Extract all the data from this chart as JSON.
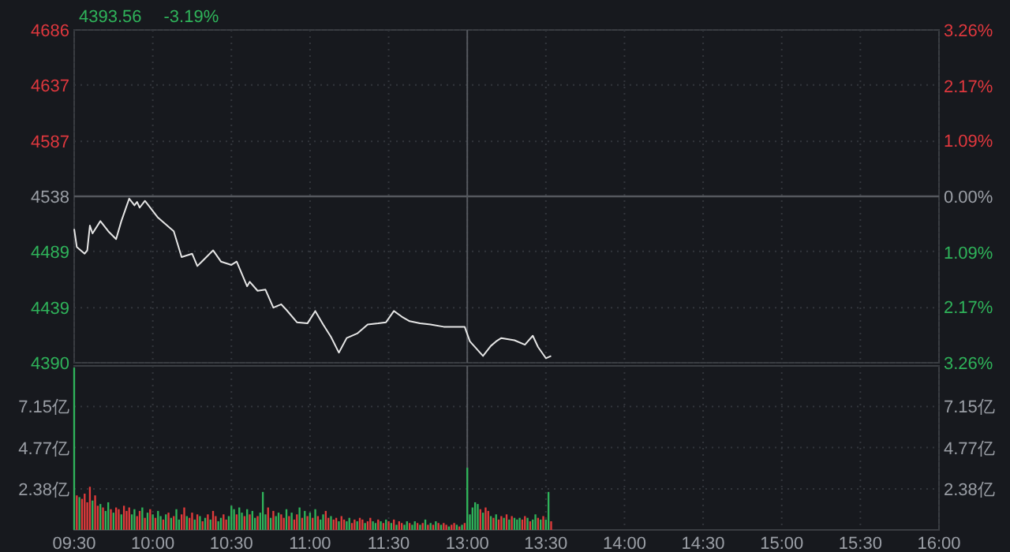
{
  "chart_data": [
    {
      "type": "line",
      "title": "4393.56",
      "subtitle": "-3.19%",
      "categories": [
        "09:30",
        null,
        null,
        null,
        null,
        null,
        null,
        null,
        null,
        null,
        null,
        null,
        null,
        null,
        null,
        null,
        null,
        null,
        null,
        null,
        null,
        null,
        null,
        null,
        null,
        null,
        null,
        null,
        null,
        null,
        "10:00",
        null,
        null,
        null,
        null,
        null,
        null,
        null,
        null,
        null,
        null,
        null,
        null,
        null,
        null,
        null,
        null,
        null,
        null,
        null,
        null,
        null,
        null,
        null,
        null,
        null,
        null,
        null,
        null,
        null,
        "10:30",
        null,
        null,
        null,
        null,
        null,
        null,
        null,
        null,
        null,
        null,
        null,
        null,
        null,
        null,
        null,
        null,
        null,
        null,
        null,
        null,
        null,
        null,
        null,
        null,
        null,
        null,
        null,
        null,
        null,
        "11:00",
        null,
        null,
        null,
        null,
        null,
        null,
        null,
        null,
        null,
        null,
        null,
        null,
        null,
        null,
        null,
        null,
        null,
        null,
        null,
        null,
        null,
        null,
        null,
        null,
        null,
        null,
        null,
        null,
        null,
        "11:30",
        null,
        null,
        null,
        null,
        null,
        null,
        null,
        null,
        null,
        null,
        null,
        null,
        null,
        null,
        null,
        null,
        null,
        null,
        null,
        null,
        null,
        null,
        null,
        null,
        null,
        null,
        null,
        null,
        null,
        "13:00",
        null,
        null,
        null,
        null,
        null,
        null,
        null,
        null,
        null,
        null,
        null,
        null,
        null,
        null,
        null,
        null,
        null,
        null,
        null,
        null,
        null,
        null,
        null,
        null,
        null,
        null,
        null,
        null,
        null,
        "13:30",
        null,
        null,
        null,
        null,
        null,
        null,
        null,
        null,
        null,
        null,
        null,
        null,
        null,
        null,
        null,
        null,
        null,
        null,
        null,
        null,
        null,
        null,
        null,
        null,
        null,
        null,
        null,
        null,
        null,
        "14:00",
        null,
        null,
        null,
        null,
        null,
        null,
        null,
        null,
        null,
        null,
        null,
        null,
        null,
        null,
        null,
        null,
        null,
        null,
        null,
        null,
        null,
        null,
        null,
        null,
        null,
        null,
        null,
        null,
        null,
        "14:30",
        null,
        null,
        null,
        null,
        null,
        null,
        null,
        null,
        null,
        null,
        null,
        null,
        null,
        null,
        null,
        null,
        null,
        null,
        null,
        null,
        null,
        null,
        null,
        null,
        null,
        null,
        null,
        null,
        null,
        "15:00",
        null,
        null,
        null,
        null,
        null,
        null,
        null,
        null,
        null,
        null,
        null,
        null,
        null,
        null,
        null,
        null,
        null,
        null,
        null,
        null,
        null,
        null,
        null,
        null,
        null,
        null,
        null,
        null,
        null,
        "15:30",
        null,
        null,
        null,
        null,
        null,
        null,
        null,
        null,
        null,
        null,
        null,
        null,
        null,
        null,
        null,
        null,
        null,
        null,
        null,
        null,
        null,
        null,
        null,
        null,
        null,
        null,
        null,
        null,
        null,
        "16:00"
      ],
      "ylim": [
        4390,
        4686
      ],
      "yticks": [
        4390,
        4439,
        4489,
        4538,
        4587,
        4637,
        4686
      ],
      "y2lim": [
        -3.26,
        3.26
      ],
      "y2ticks": [
        {
          "value": -3.26,
          "label": "3.26%"
        },
        {
          "value": -2.17,
          "label": "2.17%"
        },
        {
          "value": -1.09,
          "label": "1.09%"
        },
        {
          "value": 0,
          "label": "0.00%"
        },
        {
          "value": 1.09,
          "label": "1.09%"
        },
        {
          "value": 2.17,
          "label": "2.17%"
        },
        {
          "value": 3.26,
          "label": "3.26%"
        }
      ],
      "tick_labels": "y",
      "grid": true,
      "ref_lines": [
        {
          "axis": "y",
          "value": 4538,
          "label": null,
          "color": "#55585e"
        },
        {
          "axis": "x",
          "value": "13:00",
          "label": null,
          "color": "#55585e"
        }
      ],
      "series": [
        {
          "color": "#e6e6e6",
          "values": [
            4509,
            4493,
            null,
            null,
            4487,
            4490,
            4512,
            4505,
            null,
            null,
            4516,
            null,
            null,
            4507,
            null,
            null,
            4500,
            null,
            4516,
            null,
            null,
            4536,
            null,
            4530,
            4533,
            4528,
            null,
            4534,
            null,
            null,
            null,
            null,
            4519,
            null,
            null,
            null,
            4511,
            null,
            4507,
            null,
            null,
            4484,
            null,
            null,
            null,
            4487,
            null,
            4476,
            null,
            null,
            4483,
            null,
            null,
            4490,
            null,
            null,
            4480,
            null,
            null,
            null,
            4477,
            null,
            4480,
            null,
            null,
            null,
            4458,
            4462,
            null,
            null,
            4454,
            null,
            null,
            4455,
            null,
            null,
            4439,
            null,
            null,
            4442,
            null,
            4437,
            null,
            null,
            null,
            4426,
            null,
            null,
            null,
            4425,
            null,
            null,
            4436,
            null,
            null,
            4424,
            null,
            null,
            4413,
            null,
            null,
            4399,
            null,
            null,
            4412,
            null,
            null,
            null,
            4416,
            null,
            null,
            null,
            4424,
            null,
            null,
            null,
            4425,
            null,
            null,
            4426,
            null,
            null,
            4436,
            null,
            null,
            4431,
            null,
            null,
            4427,
            null,
            null,
            null,
            4425,
            null,
            null,
            null,
            4424,
            null,
            null,
            null,
            null,
            4422,
            null,
            null,
            null,
            null,
            4422,
            null,
            null,
            4422,
            null,
            4409,
            null,
            null,
            null,
            null,
            4396,
            null,
            null,
            4405,
            null,
            4409,
            null,
            4412,
            null,
            null,
            null,
            null,
            4410,
            null,
            null,
            null,
            4406,
            null,
            null,
            4414,
            null,
            4404,
            null,
            null,
            4394,
            null,
            4396,
            null,
            null,
            null,
            null,
            null,
            null,
            null,
            null,
            null,
            null,
            null,
            null,
            null,
            null,
            null,
            null,
            null,
            null,
            null,
            null,
            null,
            null,
            null,
            null,
            null,
            null,
            null,
            null,
            null,
            null,
            null,
            null,
            null,
            null,
            null,
            null,
            null,
            null,
            null,
            null,
            null,
            null,
            null,
            null,
            null,
            null,
            null,
            null,
            null,
            null,
            null,
            null,
            null,
            null,
            null,
            null,
            null,
            null,
            null,
            null,
            null,
            null,
            null,
            null,
            null,
            null,
            null,
            null,
            null,
            null,
            null,
            null,
            null,
            null,
            null,
            null,
            null,
            null,
            null,
            null,
            null,
            null,
            null,
            null,
            null,
            null,
            null,
            null,
            null,
            null,
            null,
            null,
            null,
            null,
            null,
            null,
            null,
            null,
            null,
            null,
            null,
            null,
            null,
            null,
            null,
            null,
            null,
            null,
            null,
            null,
            null,
            null,
            null,
            null,
            null,
            null,
            null,
            null,
            null,
            null,
            null,
            null,
            null,
            null,
            null,
            null,
            null,
            null,
            null,
            null,
            null,
            null,
            null,
            null,
            null,
            null,
            null,
            null,
            null,
            null,
            null,
            null,
            null,
            null,
            null,
            null,
            null,
            null
          ]
        }
      ]
    },
    {
      "type": "bar",
      "categories": [
        "09:30",
        null,
        null,
        null,
        null,
        null,
        null,
        null,
        null,
        null,
        null,
        null,
        null,
        null,
        null,
        null,
        null,
        null,
        null,
        null,
        null,
        null,
        null,
        null,
        null,
        null,
        null,
        null,
        null,
        null,
        "10:00",
        null,
        null,
        null,
        null,
        null,
        null,
        null,
        null,
        null,
        null,
        null,
        null,
        null,
        null,
        null,
        null,
        null,
        null,
        null,
        null,
        null,
        null,
        null,
        null,
        null,
        null,
        null,
        null,
        null,
        "10:30",
        null,
        null,
        null,
        null,
        null,
        null,
        null,
        null,
        null,
        null,
        null,
        null,
        null,
        null,
        null,
        null,
        null,
        null,
        null,
        null,
        null,
        null,
        null,
        null,
        null,
        null,
        null,
        null,
        null,
        "11:00",
        null,
        null,
        null,
        null,
        null,
        null,
        null,
        null,
        null,
        null,
        null,
        null,
        null,
        null,
        null,
        null,
        null,
        null,
        null,
        null,
        null,
        null,
        null,
        null,
        null,
        null,
        null,
        null,
        null,
        "11:30",
        null,
        null,
        null,
        null,
        null,
        null,
        null,
        null,
        null,
        null,
        null,
        null,
        null,
        null,
        null,
        null,
        null,
        null,
        null,
        null,
        null,
        null,
        null,
        null,
        null,
        null,
        null,
        null,
        null,
        "13:00",
        null,
        null,
        null,
        null,
        null,
        null,
        null,
        null,
        null,
        null,
        null,
        null,
        null,
        null,
        null,
        null,
        null,
        null,
        null,
        null,
        null,
        null,
        null,
        null,
        null,
        null,
        null,
        null,
        null,
        "13:30",
        null,
        null,
        null,
        null,
        null,
        null,
        null,
        null,
        null,
        null,
        null,
        null,
        null,
        null,
        null,
        null,
        null,
        null,
        null,
        null,
        null,
        null,
        null,
        null,
        null,
        null,
        null,
        null,
        null,
        "14:00",
        null,
        null,
        null,
        null,
        null,
        null,
        null,
        null,
        null,
        null,
        null,
        null,
        null,
        null,
        null,
        null,
        null,
        null,
        null,
        null,
        null,
        null,
        null,
        null,
        null,
        null,
        null,
        null,
        null,
        "14:30",
        null,
        null,
        null,
        null,
        null,
        null,
        null,
        null,
        null,
        null,
        null,
        null,
        null,
        null,
        null,
        null,
        null,
        null,
        null,
        null,
        null,
        null,
        null,
        null,
        null,
        null,
        null,
        null,
        null,
        "15:00",
        null,
        null,
        null,
        null,
        null,
        null,
        null,
        null,
        null,
        null,
        null,
        null,
        null,
        null,
        null,
        null,
        null,
        null,
        null,
        null,
        null,
        null,
        null,
        null,
        null,
        null,
        null,
        null,
        null,
        "15:30",
        null,
        null,
        null,
        null,
        null,
        null,
        null,
        null,
        null,
        null,
        null,
        null,
        null,
        null,
        null,
        null,
        null,
        null,
        null,
        null,
        null,
        null,
        null,
        null,
        null,
        null,
        null,
        null,
        null,
        "16:00"
      ],
      "ylim": [
        0,
        9.5
      ],
      "yticks": [
        {
          "value": 2.38,
          "label": "2.38亿"
        },
        {
          "value": 4.77,
          "label": "4.77亿"
        },
        {
          "value": 7.15,
          "label": "7.15亿"
        }
      ],
      "y2lim": [
        0,
        9.5
      ],
      "y2ticks": [
        {
          "value": 2.38,
          "label": "2.38亿"
        },
        {
          "value": 4.77,
          "label": "4.77亿"
        },
        {
          "value": 7.15,
          "label": "7.15亿"
        }
      ],
      "grid": true,
      "ref_lines": [
        {
          "axis": "x",
          "value": "13:00",
          "label": null,
          "color": "#55585e"
        }
      ],
      "values": [
        9.4,
        2.0,
        1.9,
        1.8,
        2.1,
        1.6,
        2.5,
        1.7,
        2.0,
        1.4,
        1.5,
        1.3,
        1.1,
        1.6,
        1.2,
        1.0,
        1.3,
        1.2,
        0.9,
        1.4,
        1.1,
        1.3,
        0.9,
        1.2,
        0.8,
        1.1,
        1.3,
        0.7,
        1.0,
        1.2,
        0.9,
        0.7,
        1.1,
        0.8,
        0.6,
        0.9,
        1.0,
        0.7,
        0.8,
        1.2,
        0.6,
        0.9,
        1.3,
        0.8,
        0.7,
        1.0,
        0.6,
        0.9,
        0.8,
        0.5,
        0.7,
        0.9,
        0.6,
        1.1,
        0.8,
        0.5,
        0.7,
        0.9,
        0.6,
        0.8,
        1.4,
        1.2,
        0.9,
        1.3,
        1.0,
        0.8,
        1.2,
        0.9,
        1.1,
        0.7,
        0.8,
        1.0,
        2.2,
        0.9,
        1.3,
        0.7,
        1.1,
        0.8,
        1.0,
        0.9,
        0.7,
        1.2,
        0.8,
        1.0,
        0.6,
        0.9,
        1.3,
        0.7,
        1.1,
        0.8,
        1.0,
        0.7,
        1.2,
        0.8,
        0.6,
        0.9,
        1.1,
        0.7,
        0.8,
        0.6,
        0.7,
        0.5,
        0.8,
        0.6,
        0.5,
        0.7,
        0.4,
        0.6,
        0.5,
        0.7,
        0.6,
        0.4,
        0.5,
        0.7,
        0.5,
        0.4,
        0.6,
        0.5,
        0.4,
        0.6,
        0.5,
        0.4,
        0.6,
        0.3,
        0.5,
        0.4,
        0.3,
        0.5,
        0.4,
        0.3,
        0.5,
        0.4,
        0.3,
        0.4,
        0.6,
        0.3,
        0.4,
        0.3,
        0.5,
        0.4,
        0.3,
        0.4,
        0.3,
        0.2,
        0.3,
        0.4,
        0.3,
        0.2,
        0.3,
        0.4,
        3.6,
        0.9,
        1.3,
        1.6,
        1.5,
        1.2,
        1.0,
        1.3,
        1.1,
        0.8,
        0.7,
        0.9,
        0.6,
        0.8,
        0.7,
        0.9,
        0.6,
        0.8,
        0.7,
        0.6,
        0.7,
        0.6,
        0.8,
        0.7,
        0.5,
        0.6,
        0.9,
        0.7,
        0.6,
        0.8,
        0.6,
        2.2,
        0.5,
        null,
        null,
        null,
        null,
        null,
        null,
        null,
        null,
        null,
        null,
        null,
        null,
        null,
        null,
        null,
        null,
        null,
        null,
        null,
        null,
        null,
        null,
        null,
        null,
        null,
        null,
        null,
        null,
        null,
        null,
        null,
        null,
        null,
        null,
        null,
        null,
        null,
        null,
        null,
        null,
        null,
        null,
        null,
        null,
        null,
        null,
        null,
        null,
        null,
        null,
        null,
        null,
        null,
        null,
        null,
        null,
        null,
        null,
        null,
        null,
        null,
        null,
        null,
        null,
        null,
        null,
        null,
        null,
        null,
        null,
        null,
        null,
        null,
        null,
        null,
        null,
        null,
        null,
        null,
        null,
        null,
        null,
        null,
        null,
        null,
        null,
        null,
        null,
        null,
        null,
        null,
        null,
        null,
        null,
        null,
        null,
        null,
        null,
        null,
        null,
        null,
        null,
        null,
        null,
        null,
        null,
        null,
        null,
        null,
        null,
        null,
        null,
        null,
        null,
        null,
        null,
        null,
        null,
        null,
        null,
        null,
        null,
        null,
        null,
        null,
        null,
        null,
        null,
        null,
        null,
        null,
        null,
        null,
        null,
        null,
        null,
        null,
        null,
        null,
        null,
        null,
        null,
        null,
        null,
        null,
        null,
        null,
        null
      ],
      "colors": [
        "#2fb35a",
        "#e03b3b",
        "#2fb35a",
        "#e03b3b",
        "#e03b3b",
        "#e03b3b",
        "#e03b3b",
        "#2fb35a",
        "#e03b3b",
        "#e03b3b",
        "#2fb35a",
        "#e03b3b",
        "#2fb35a",
        "#2fb35a",
        "#e03b3b",
        "#2fb35a",
        "#e03b3b",
        "#e03b3b",
        "#2fb35a",
        "#e03b3b",
        "#e03b3b",
        "#e03b3b",
        "#2fb35a",
        "#2fb35a",
        "#e03b3b",
        "#e03b3b",
        "#2fb35a",
        "#e03b3b",
        "#2fb35a",
        "#e03b3b",
        "#2fb35a",
        "#e03b3b",
        "#2fb35a",
        "#2fb35a",
        "#e03b3b",
        "#2fb35a",
        "#e03b3b",
        "#2fb35a",
        "#e03b3b",
        "#2fb35a",
        "#2fb35a",
        "#e03b3b",
        "#e03b3b",
        "#2fb35a",
        "#e03b3b",
        "#e03b3b",
        "#2fb35a",
        "#e03b3b",
        "#2fb35a",
        "#e03b3b",
        "#2fb35a",
        "#e03b3b",
        "#2fb35a",
        "#e03b3b",
        "#e03b3b",
        "#2fb35a",
        "#2fb35a",
        "#e03b3b",
        "#e03b3b",
        "#2fb35a",
        "#2fb35a",
        "#2fb35a",
        "#e03b3b",
        "#2fb35a",
        "#2fb35a",
        "#e03b3b",
        "#2fb35a",
        "#e03b3b",
        "#2fb35a",
        "#2fb35a",
        "#e03b3b",
        "#2fb35a",
        "#2fb35a",
        "#2fb35a",
        "#e03b3b",
        "#2fb35a",
        "#e03b3b",
        "#2fb35a",
        "#2fb35a",
        "#e03b3b",
        "#e03b3b",
        "#2fb35a",
        "#e03b3b",
        "#2fb35a",
        "#e03b3b",
        "#e03b3b",
        "#2fb35a",
        "#e03b3b",
        "#2fb35a",
        "#e03b3b",
        "#2fb35a",
        "#e03b3b",
        "#2fb35a",
        "#e03b3b",
        "#2fb35a",
        "#2fb35a",
        "#e03b3b",
        "#e03b3b",
        "#2fb35a",
        "#e03b3b",
        "#e03b3b",
        "#2fb35a",
        "#e03b3b",
        "#e03b3b",
        "#2fb35a",
        "#2fb35a",
        "#e03b3b",
        "#e03b3b",
        "#2fb35a",
        "#e03b3b",
        "#e03b3b",
        "#2fb35a",
        "#e03b3b",
        "#e03b3b",
        "#2fb35a",
        "#2fb35a",
        "#e03b3b",
        "#2fb35a",
        "#e03b3b",
        "#2fb35a",
        "#e03b3b",
        "#2fb35a",
        "#e03b3b",
        "#2fb35a",
        "#e03b3b",
        "#e03b3b",
        "#2fb35a",
        "#2fb35a",
        "#e03b3b",
        "#2fb35a",
        "#2fb35a",
        "#e03b3b",
        "#2fb35a",
        "#e03b3b",
        "#2fb35a",
        "#e03b3b",
        "#2fb35a",
        "#e03b3b",
        "#2fb35a",
        "#e03b3b",
        "#2fb35a",
        "#e03b3b",
        "#e03b3b",
        "#2fb35a",
        "#e03b3b",
        "#e03b3b",
        "#2fb35a",
        "#e03b3b",
        "#2fb35a",
        "#e03b3b",
        "#2fb35a",
        "#2fb35a",
        "#2fb35a",
        "#2fb35a",
        "#2fb35a",
        "#e03b3b",
        "#2fb35a",
        "#e03b3b",
        "#e03b3b",
        "#2fb35a",
        "#e03b3b",
        "#2fb35a",
        "#e03b3b",
        "#e03b3b",
        "#2fb35a",
        "#e03b3b",
        "#2fb35a",
        "#e03b3b",
        "#2fb35a",
        "#2fb35a",
        "#2fb35a",
        "#e03b3b",
        "#e03b3b",
        "#2fb35a",
        "#e03b3b",
        "#2fb35a",
        "#2fb35a",
        "#e03b3b",
        "#2fb35a",
        "#e03b3b",
        "#2fb35a",
        "#2fb35a",
        "#e03b3b",
        null,
        null,
        null,
        null,
        null,
        null,
        null,
        null,
        null,
        null,
        null,
        null,
        null,
        null,
        null,
        null,
        null,
        null,
        null,
        null,
        null,
        null,
        null,
        null,
        null,
        null,
        null,
        null,
        null,
        null,
        null,
        null,
        null,
        null,
        null,
        null,
        null,
        null,
        null,
        null,
        null,
        null,
        null,
        null,
        null,
        null,
        null,
        null,
        null,
        null,
        null,
        null,
        null,
        null,
        null,
        null,
        null,
        null,
        null,
        null,
        null,
        null,
        null,
        null,
        null,
        null,
        null,
        null,
        null,
        null,
        null,
        null,
        null,
        null,
        null,
        null,
        null,
        null,
        null,
        null,
        null,
        null,
        null,
        null,
        null,
        null,
        null,
        null,
        null,
        null,
        null,
        null,
        null,
        null,
        null,
        null,
        null,
        null,
        null,
        null,
        null,
        null,
        null,
        null,
        null,
        null,
        null,
        null,
        null,
        null,
        null,
        null,
        null,
        null,
        null,
        null,
        null,
        null,
        null,
        null,
        null,
        null,
        null,
        null,
        null,
        null,
        null,
        null,
        null,
        null,
        null,
        null,
        null,
        null,
        null,
        null,
        null,
        null,
        null,
        null,
        null,
        null,
        null,
        null,
        null,
        null,
        null,
        null
      ]
    }
  ]
}
